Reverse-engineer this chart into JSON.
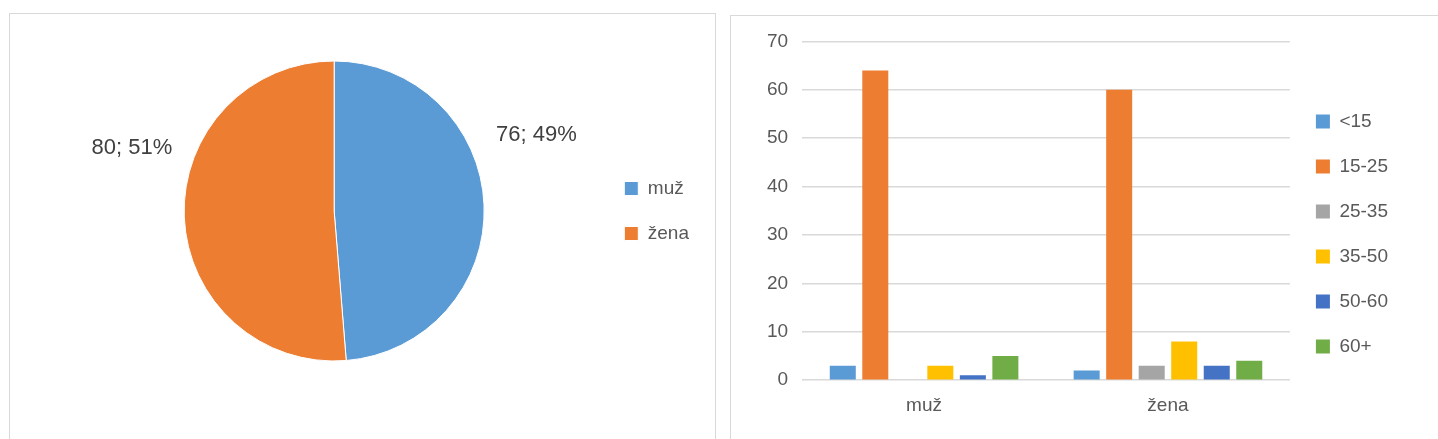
{
  "chart_data": [
    {
      "type": "pie",
      "categories": [
        "muž",
        "žena"
      ],
      "values": [
        76,
        80
      ],
      "colors": [
        "#5b9bd5",
        "#ed7d31"
      ],
      "value_labels": [
        "76; 49%",
        "80; 51%"
      ],
      "legend": "right"
    },
    {
      "type": "bar",
      "categories": [
        "muž",
        "žena"
      ],
      "series": [
        {
          "name": "<15",
          "color": "#5b9bd5",
          "values": [
            3,
            2
          ]
        },
        {
          "name": "15-25",
          "color": "#ed7d31",
          "values": [
            64,
            60
          ]
        },
        {
          "name": "25-35",
          "color": "#a5a5a5",
          "values": [
            0,
            3
          ]
        },
        {
          "name": "35-50",
          "color": "#ffc000",
          "values": [
            3,
            8
          ]
        },
        {
          "name": "50-60",
          "color": "#4472c4",
          "values": [
            1,
            3
          ]
        },
        {
          "name": "60+",
          "color": "#70ad47",
          "values": [
            5,
            4
          ]
        }
      ],
      "ylim": [
        0,
        70
      ],
      "yticks": [
        0,
        10,
        20,
        30,
        40,
        50,
        60,
        70
      ],
      "grid": "y",
      "legend": "right"
    }
  ]
}
